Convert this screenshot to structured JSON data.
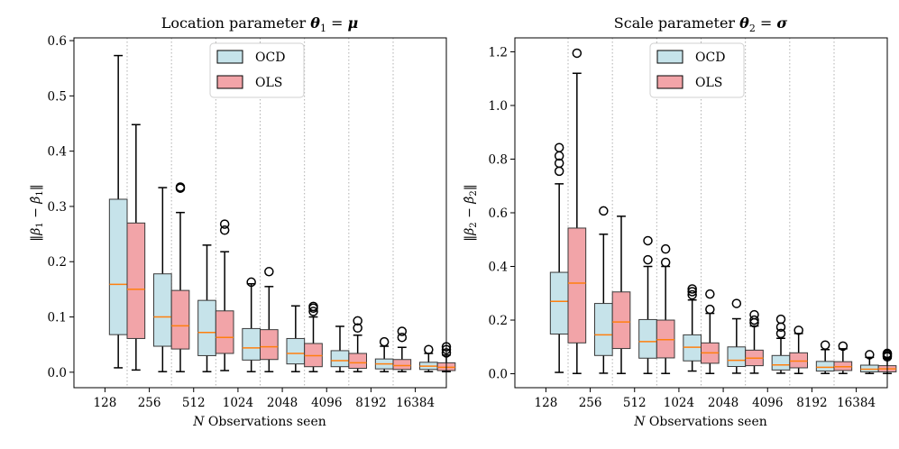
{
  "legend": {
    "ocd": "OCD",
    "ols": "OLS"
  },
  "colors": {
    "ocd": "#c6e3ea",
    "ols": "#f2a4a8",
    "median": "#ff7f0e",
    "edge": "#000000",
    "grid": "#b0b0b0"
  },
  "chart_data": [
    {
      "type": "box",
      "title": "Location parameter θ₁ = μ",
      "xlabel": "N Observations seen",
      "ylabel": "‖β₁ − β̂₁‖",
      "ylim": [
        -0.028,
        0.605
      ],
      "yticks": [
        "0.0",
        "0.1",
        "0.2",
        "0.3",
        "0.4",
        "0.5",
        "0.6"
      ],
      "categories": [
        "128",
        "256",
        "512",
        "1024",
        "2048",
        "4096",
        "8192",
        "16384"
      ],
      "series": [
        {
          "name": "OCD",
          "boxes": [
            {
              "wlo": 0.008,
              "q1": 0.068,
              "med": 0.159,
              "q3": 0.313,
              "whi": 0.573,
              "out": []
            },
            {
              "wlo": 0.001,
              "q1": 0.047,
              "med": 0.1,
              "q3": 0.178,
              "whi": 0.334,
              "out": []
            },
            {
              "wlo": 0.001,
              "q1": 0.03,
              "med": 0.072,
              "q3": 0.13,
              "whi": 0.23,
              "out": []
            },
            {
              "wlo": 0.001,
              "q1": 0.022,
              "med": 0.044,
              "q3": 0.079,
              "whi": 0.16,
              "out": [
                0.163
              ]
            },
            {
              "wlo": 0.001,
              "q1": 0.015,
              "med": 0.034,
              "q3": 0.061,
              "whi": 0.12,
              "out": []
            },
            {
              "wlo": 0.001,
              "q1": 0.01,
              "med": 0.021,
              "q3": 0.039,
              "whi": 0.083,
              "out": []
            },
            {
              "wlo": 0.001,
              "q1": 0.006,
              "med": 0.015,
              "q3": 0.024,
              "whi": 0.047,
              "out": [
                0.055
              ]
            },
            {
              "wlo": 0.001,
              "q1": 0.005,
              "med": 0.011,
              "q3": 0.018,
              "whi": 0.034,
              "out": [
                0.041
              ]
            }
          ]
        },
        {
          "name": "OLS",
          "boxes": [
            {
              "wlo": 0.004,
              "q1": 0.061,
              "med": 0.15,
              "q3": 0.27,
              "whi": 0.448,
              "out": []
            },
            {
              "wlo": 0.001,
              "q1": 0.042,
              "med": 0.084,
              "q3": 0.148,
              "whi": 0.289,
              "out": [
                0.333,
                0.335
              ]
            },
            {
              "wlo": 0.003,
              "q1": 0.034,
              "med": 0.063,
              "q3": 0.111,
              "whi": 0.218,
              "out": [
                0.257,
                0.268
              ]
            },
            {
              "wlo": 0.001,
              "q1": 0.023,
              "med": 0.046,
              "q3": 0.077,
              "whi": 0.155,
              "out": [
                0.182
              ]
            },
            {
              "wlo": 0.001,
              "q1": 0.01,
              "med": 0.03,
              "q3": 0.052,
              "whi": 0.1,
              "out": [
                0.11,
                0.116,
                0.119
              ]
            },
            {
              "wlo": 0.001,
              "q1": 0.007,
              "med": 0.017,
              "q3": 0.034,
              "whi": 0.067,
              "out": [
                0.08,
                0.093
              ]
            },
            {
              "wlo": 0.001,
              "q1": 0.005,
              "med": 0.012,
              "q3": 0.023,
              "whi": 0.045,
              "out": [
                0.063,
                0.074
              ]
            },
            {
              "wlo": 0.001,
              "q1": 0.003,
              "med": 0.009,
              "q3": 0.017,
              "whi": 0.031,
              "out": [
                0.035,
                0.041,
                0.046
              ]
            }
          ]
        }
      ]
    },
    {
      "type": "box",
      "title": "Scale parameter θ₂ = σ",
      "xlabel": "N Observations seen",
      "ylabel": "‖β₂ − β̂₂‖",
      "ylim": [
        -0.052,
        1.252
      ],
      "yticks": [
        "0.0",
        "0.2",
        "0.4",
        "0.6",
        "0.8",
        "1.0",
        "1.2"
      ],
      "categories": [
        "128",
        "256",
        "512",
        "1024",
        "2048",
        "4096",
        "8192",
        "16384"
      ],
      "series": [
        {
          "name": "OCD",
          "boxes": [
            {
              "wlo": 0.005,
              "q1": 0.148,
              "med": 0.27,
              "q3": 0.378,
              "whi": 0.708,
              "out": [
                0.755,
                0.785,
                0.812,
                0.843
              ]
            },
            {
              "wlo": 0.002,
              "q1": 0.068,
              "med": 0.145,
              "q3": 0.262,
              "whi": 0.52,
              "out": [
                0.607
              ]
            },
            {
              "wlo": 0.001,
              "q1": 0.058,
              "med": 0.12,
              "q3": 0.202,
              "whi": 0.4,
              "out": [
                0.425,
                0.496
              ]
            },
            {
              "wlo": 0.01,
              "q1": 0.048,
              "med": 0.099,
              "q3": 0.145,
              "whi": 0.275,
              "out": [
                0.294,
                0.306,
                0.316
              ]
            },
            {
              "wlo": 0.002,
              "q1": 0.027,
              "med": 0.05,
              "q3": 0.1,
              "whi": 0.205,
              "out": [
                0.262
              ]
            },
            {
              "wlo": 0.002,
              "q1": 0.014,
              "med": 0.033,
              "q3": 0.068,
              "whi": 0.132,
              "out": [
                0.15,
                0.174,
                0.203
              ]
            },
            {
              "wlo": 0.001,
              "q1": 0.01,
              "med": 0.024,
              "q3": 0.046,
              "whi": 0.09,
              "out": [
                0.107
              ]
            },
            {
              "wlo": 0.001,
              "q1": 0.007,
              "med": 0.017,
              "q3": 0.032,
              "whi": 0.061,
              "out": [
                0.071
              ]
            }
          ]
        },
        {
          "name": "OLS",
          "boxes": [
            {
              "wlo": 0.001,
              "q1": 0.115,
              "med": 0.338,
              "q3": 0.543,
              "whi": 1.12,
              "out": [
                1.195
              ]
            },
            {
              "wlo": 0.001,
              "q1": 0.094,
              "med": 0.193,
              "q3": 0.305,
              "whi": 0.587,
              "out": []
            },
            {
              "wlo": 0.001,
              "q1": 0.059,
              "med": 0.127,
              "q3": 0.2,
              "whi": 0.4,
              "out": [
                0.415,
                0.465
              ]
            },
            {
              "wlo": 0.001,
              "q1": 0.039,
              "med": 0.078,
              "q3": 0.115,
              "whi": 0.225,
              "out": [
                0.24,
                0.297
              ]
            },
            {
              "wlo": 0.002,
              "q1": 0.03,
              "med": 0.058,
              "q3": 0.088,
              "whi": 0.178,
              "out": [
                0.19,
                0.2,
                0.22
              ]
            },
            {
              "wlo": 0.001,
              "q1": 0.022,
              "med": 0.047,
              "q3": 0.078,
              "whi": 0.15,
              "out": [
                0.162
              ]
            },
            {
              "wlo": 0.001,
              "q1": 0.012,
              "med": 0.026,
              "q3": 0.045,
              "whi": 0.093,
              "out": [
                0.103
              ]
            },
            {
              "wlo": 0.001,
              "q1": 0.007,
              "med": 0.018,
              "q3": 0.03,
              "whi": 0.058,
              "out": [
                0.063,
                0.068,
                0.073,
                0.076
              ]
            }
          ]
        }
      ]
    }
  ]
}
